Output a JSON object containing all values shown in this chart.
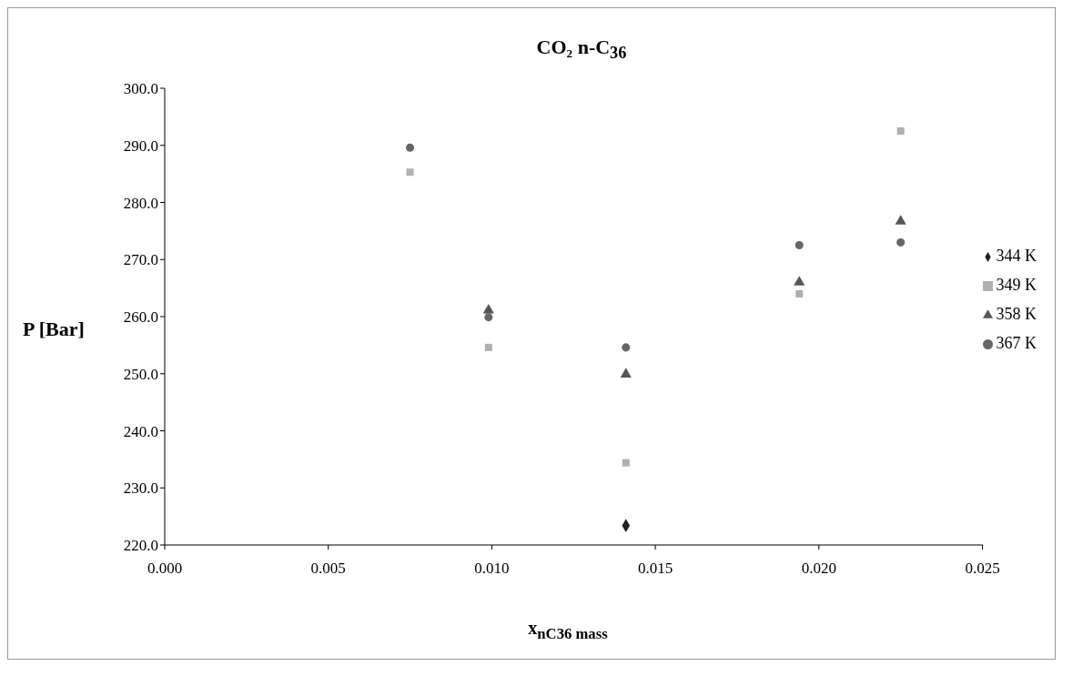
{
  "chart_data": {
    "type": "scatter",
    "title": "CO₂ n-C$_{36}$",
    "xlabel": "x$_{nC36 mass}$",
    "ylabel": "P [Bar]",
    "xlim": [
      0,
      0.025
    ],
    "xticks": [
      {
        "value": 0,
        "label": "0.000"
      },
      {
        "value": 0.005,
        "label": "0.005"
      },
      {
        "value": 0.01,
        "label": "0.010"
      },
      {
        "value": 0.015,
        "label": "0.015"
      },
      {
        "value": 0.02,
        "label": "0.020"
      },
      {
        "value": 0.025,
        "label": "0.025"
      }
    ],
    "ylim": [
      220,
      300
    ],
    "yticks": [
      {
        "value": 220,
        "label": "220.0"
      },
      {
        "value": 230,
        "label": "230.0"
      },
      {
        "value": 240,
        "label": "240.0"
      },
      {
        "value": 250,
        "label": "250.0"
      },
      {
        "value": 260,
        "label": "260.0"
      },
      {
        "value": 270,
        "label": "270.0"
      },
      {
        "value": 280,
        "label": "280.0"
      },
      {
        "value": 290,
        "label": "290.0"
      },
      {
        "value": 300,
        "label": "300.0"
      }
    ],
    "grid": false,
    "legend": "right",
    "x": [
      0.0075,
      0.0099,
      0.0141,
      0.0194,
      0.0225
    ],
    "series": [
      {
        "name": "344 K",
        "color": "#222222",
        "marker": "diamond",
        "values": [
          null,
          null,
          223.4,
          null,
          null
        ]
      },
      {
        "name": "349 K",
        "color": "#b0b0b0",
        "marker": "square",
        "values": [
          285.3,
          254.6,
          234.4,
          264.0,
          292.5
        ]
      },
      {
        "name": "358 K",
        "color": "#555555",
        "marker": "triangle",
        "values": [
          null,
          261.1,
          249.9,
          266.0,
          276.7
        ]
      },
      {
        "name": "367 K",
        "color": "#666666",
        "marker": "circle",
        "values": [
          289.6,
          259.9,
          254.6,
          272.5,
          273.0
        ]
      }
    ]
  }
}
